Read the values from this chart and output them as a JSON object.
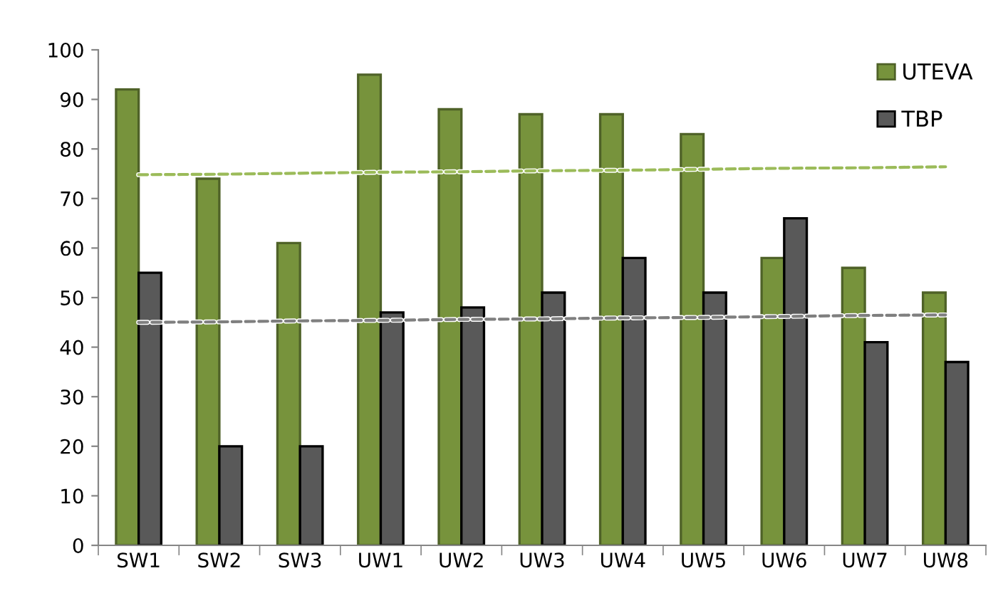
{
  "chart_data": {
    "type": "bar",
    "categories": [
      "SW1",
      "SW2",
      "SW3",
      "UW1",
      "UW2",
      "UW3",
      "UW4",
      "UW5",
      "UW6",
      "UW7",
      "UW8"
    ],
    "series": [
      {
        "name": "UTEVA",
        "color": "#77933c",
        "values": [
          92,
          74,
          61,
          95,
          88,
          87,
          87,
          83,
          58,
          56,
          51
        ]
      },
      {
        "name": "TBP",
        "color": "#595959",
        "values": [
          55,
          20,
          20,
          47,
          48,
          51,
          58,
          51,
          66,
          41,
          37
        ]
      },
      {
        "type": "line",
        "color": "#9bbb59",
        "values": [
          74.8,
          74.9,
          75.1,
          75.3,
          75.4,
          75.6,
          75.7,
          75.9,
          76.1,
          76.2,
          76.4
        ],
        "line_style": "dashed"
      },
      {
        "type": "line",
        "color": "#7f7f7f",
        "values": [
          45.0,
          45.1,
          45.3,
          45.4,
          45.6,
          45.7,
          45.9,
          46.0,
          46.2,
          46.4,
          46.5
        ],
        "line_style": "dashed"
      }
    ],
    "ylim": [
      0,
      100
    ],
    "yticks": [
      0,
      10,
      20,
      30,
      40,
      50,
      60,
      70,
      80,
      90,
      100
    ],
    "grid": false,
    "legend": "top right"
  }
}
